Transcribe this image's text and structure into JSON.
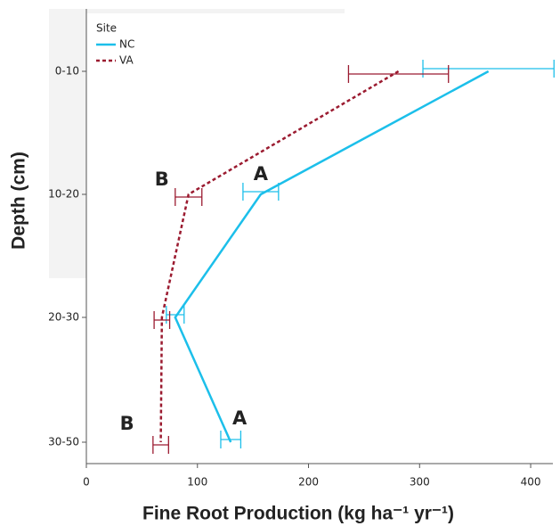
{
  "chart_data": {
    "type": "line",
    "orientation": "horizontal",
    "x_label": "Fine Root Production (kg ha⁻¹ yr⁻¹)",
    "y_label": "Depth (cm)",
    "categories": [
      "0-10",
      "10-20",
      "20-30",
      "30-50"
    ],
    "xlim": [
      0,
      420
    ],
    "xticks": [
      0,
      100,
      200,
      300,
      400
    ],
    "legend_title": "Site",
    "legend_position": "upper left",
    "series": [
      {
        "name": "NC",
        "color": "#1cbfea",
        "dash": false,
        "values": [
          362,
          157,
          80,
          130
        ],
        "errors": [
          59,
          16,
          8,
          9
        ],
        "letters": [
          null,
          "A",
          null,
          "A"
        ]
      },
      {
        "name": "VA",
        "color": "#9b1b30",
        "dash": true,
        "values": [
          281,
          92,
          68,
          67
        ],
        "errors": [
          45,
          12,
          7,
          7
        ],
        "letters": [
          null,
          "B",
          null,
          "B"
        ]
      }
    ]
  }
}
